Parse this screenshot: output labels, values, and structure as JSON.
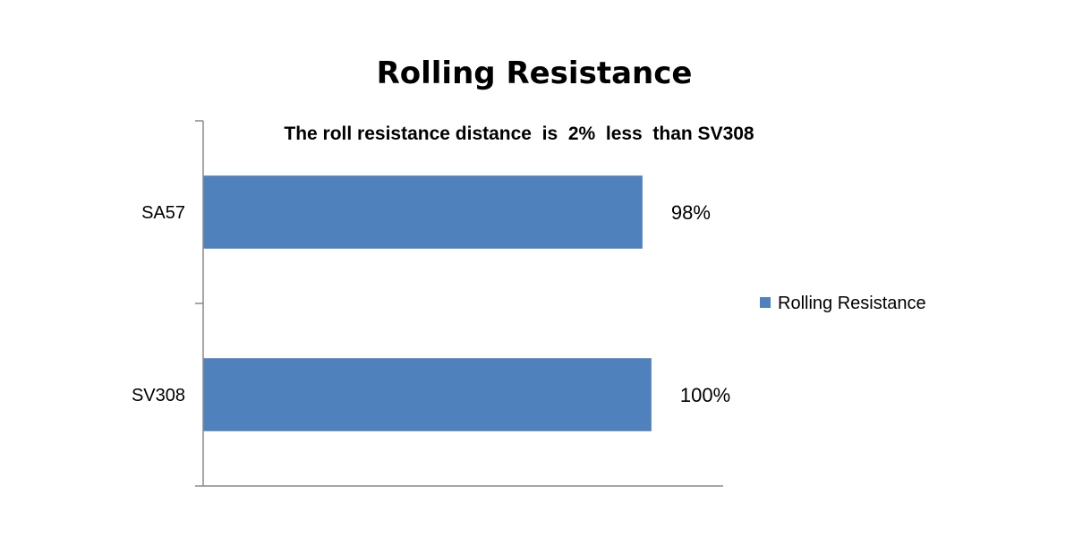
{
  "chart_data": {
    "type": "bar",
    "orientation": "horizontal",
    "title": "Rolling Resistance",
    "subtitle": "The roll resistance distance  is  2%  less  than SV308",
    "categories": [
      "SA57",
      "SV308"
    ],
    "series": [
      {
        "name": "Rolling Resistance",
        "values": [
          98,
          100
        ],
        "data_labels": [
          "98%",
          "100%"
        ],
        "color": "#4F81BD"
      }
    ],
    "xlim": [
      0,
      116
    ],
    "grid": false,
    "legend_position": "right"
  }
}
